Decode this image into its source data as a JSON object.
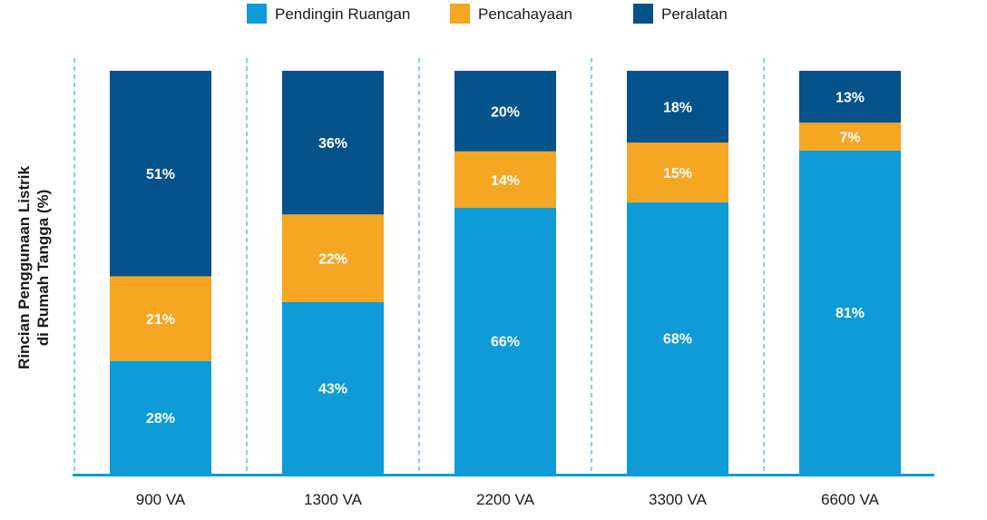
{
  "chart_data": {
    "type": "bar",
    "stacked": true,
    "normalized": true,
    "title": "",
    "xlabel": "",
    "ylabel_lines": [
      "Rincian Penggunaan Listrik",
      "di Rumah Tangga (%)"
    ],
    "categories": [
      "900 VA",
      "1300 VA",
      "2200 VA",
      "3300 VA",
      "6600 VA"
    ],
    "series": [
      {
        "name": "Pendingin Ruangan",
        "color": "#0f9bd7",
        "values": [
          28,
          43,
          66,
          68,
          81
        ],
        "labels": [
          "28%",
          "43%",
          "66%",
          "68%",
          "81%"
        ]
      },
      {
        "name": "Pencahayaan",
        "color": "#f5a623",
        "values": [
          21,
          22,
          14,
          15,
          7
        ],
        "labels": [
          "21%",
          "22%",
          "14%",
          "15%",
          "7%"
        ]
      },
      {
        "name": "Peralatan",
        "color": "#06528a",
        "values": [
          51,
          36,
          20,
          18,
          13
        ],
        "labels": [
          "51%",
          "36%",
          "20%",
          "18%",
          "13%"
        ]
      }
    ],
    "grid": "vertical dashed separators",
    "legend_position": "top",
    "axis_color": "#0f9bd7"
  }
}
